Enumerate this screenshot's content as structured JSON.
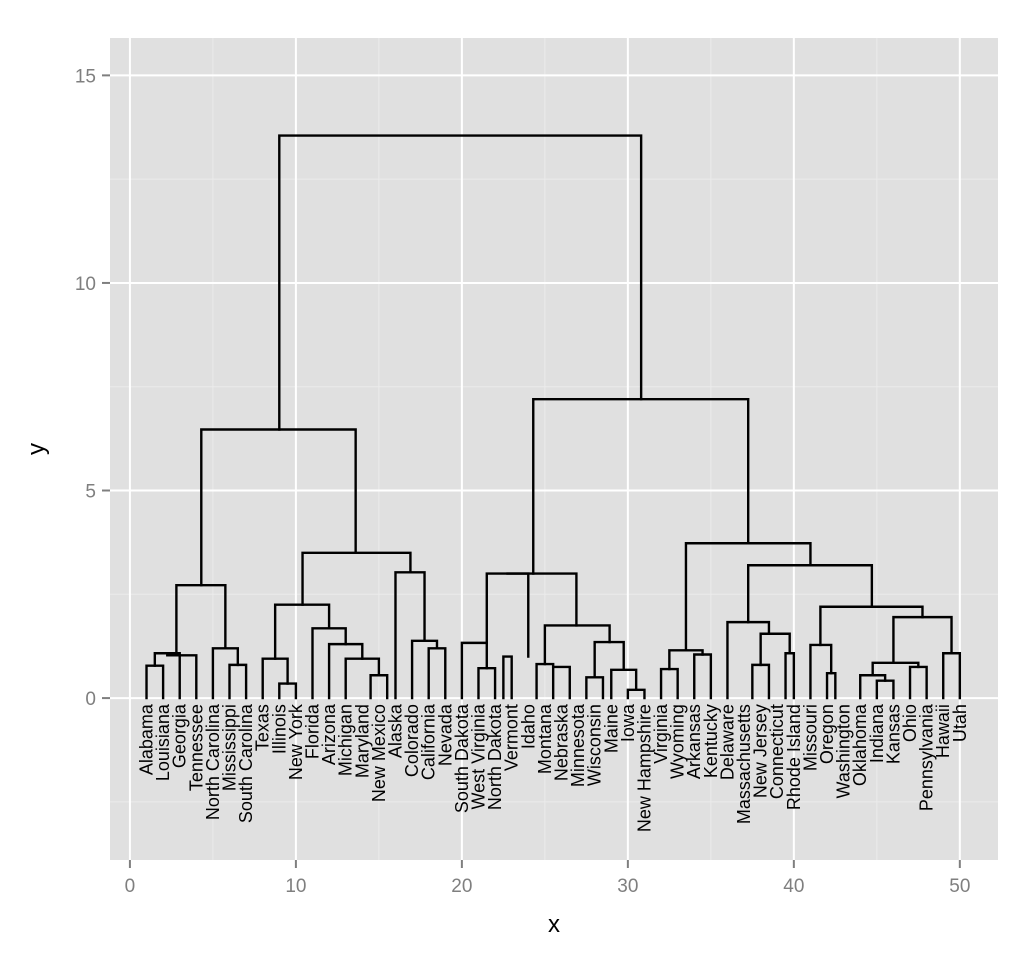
{
  "chart_data": {
    "type": "dendrogram",
    "xlabel": "x",
    "ylabel": "y",
    "xlim": [
      -1.2,
      52.3
    ],
    "ylim": [
      -3.9,
      15.9
    ],
    "x_ticks": [
      0,
      10,
      20,
      30,
      40,
      50
    ],
    "y_ticks": [
      0,
      5,
      10,
      15
    ],
    "grid": true,
    "leaves": [
      {
        "x": 1,
        "label": "Alabama"
      },
      {
        "x": 2,
        "label": "Louisiana"
      },
      {
        "x": 3,
        "label": "Georgia"
      },
      {
        "x": 4,
        "label": "Tennessee"
      },
      {
        "x": 5,
        "label": "North Carolina"
      },
      {
        "x": 6,
        "label": "Mississippi"
      },
      {
        "x": 7,
        "label": "South Carolina"
      },
      {
        "x": 8,
        "label": "Texas"
      },
      {
        "x": 9,
        "label": "Illinois"
      },
      {
        "x": 10,
        "label": "New York"
      },
      {
        "x": 11,
        "label": "Florida"
      },
      {
        "x": 12,
        "label": "Arizona"
      },
      {
        "x": 13,
        "label": "Michigan"
      },
      {
        "x": 14,
        "label": "Maryland"
      },
      {
        "x": 15,
        "label": "New Mexico"
      },
      {
        "x": 16,
        "label": "Alaska"
      },
      {
        "x": 17,
        "label": "Colorado"
      },
      {
        "x": 18,
        "label": "California"
      },
      {
        "x": 19,
        "label": "Nevada"
      },
      {
        "x": 20,
        "label": "South Dakota"
      },
      {
        "x": 21,
        "label": "West Virginia"
      },
      {
        "x": 22,
        "label": "North Dakota"
      },
      {
        "x": 23,
        "label": "Vermont"
      },
      {
        "x": 24,
        "label": "Idaho"
      },
      {
        "x": 25,
        "label": "Montana"
      },
      {
        "x": 26,
        "label": "Nebraska"
      },
      {
        "x": 27,
        "label": "Minnesota"
      },
      {
        "x": 28,
        "label": "Wisconsin"
      },
      {
        "x": 29,
        "label": "Maine"
      },
      {
        "x": 30,
        "label": "Iowa"
      },
      {
        "x": 31,
        "label": "New Hampshire"
      },
      {
        "x": 32,
        "label": "Virginia"
      },
      {
        "x": 33,
        "label": "Wyoming"
      },
      {
        "x": 34,
        "label": "Arkansas"
      },
      {
        "x": 35,
        "label": "Kentucky"
      },
      {
        "x": 36,
        "label": "Delaware"
      },
      {
        "x": 37,
        "label": "Massachusetts"
      },
      {
        "x": 38,
        "label": "New Jersey"
      },
      {
        "x": 39,
        "label": "Connecticut"
      },
      {
        "x": 40,
        "label": "Rhode Island"
      },
      {
        "x": 41,
        "label": "Missouri"
      },
      {
        "x": 42,
        "label": "Oregon"
      },
      {
        "x": 43,
        "label": "Washington"
      },
      {
        "x": 44,
        "label": "Oklahoma"
      },
      {
        "x": 45,
        "label": "Indiana"
      },
      {
        "x": 46,
        "label": "Kansas"
      },
      {
        "x": 47,
        "label": "Ohio"
      },
      {
        "x": 48,
        "label": "Pennsylvania"
      },
      {
        "x": 49,
        "label": "Hawaii"
      },
      {
        "x": 50,
        "label": "Utah"
      }
    ],
    "merges": [
      {
        "x1": 1,
        "y1": 0,
        "x2": 2,
        "y2": 0,
        "h": 0.78
      },
      {
        "x1": 1.5,
        "y1": 0.78,
        "x2": 3,
        "y2": 0,
        "h": 1.08
      },
      {
        "x1": 4,
        "y1": 0,
        "x2": 2.25,
        "y2": 1.08,
        "h": 1.03
      },
      {
        "x1": 5,
        "y1": 0,
        "x2": 6.5,
        "y2": 0.8,
        "h": 1.2
      },
      {
        "x1": 6,
        "y1": 0,
        "x2": 7,
        "y2": 0,
        "h": 0.8
      },
      {
        "x1": 2.8,
        "y1": 1.08,
        "x2": 5.75,
        "y2": 1.2,
        "h": 2.72
      },
      {
        "x1": 8,
        "y1": 0,
        "x2": 9.5,
        "y2": 0.35,
        "h": 0.95
      },
      {
        "x1": 9,
        "y1": 0,
        "x2": 10,
        "y2": 0,
        "h": 0.35
      },
      {
        "x1": 8.75,
        "y1": 0.95,
        "x2": 12,
        "y2": 1.68,
        "h": 2.25
      },
      {
        "x1": 11,
        "y1": 0,
        "x2": 13,
        "y2": 1.3,
        "h": 1.68
      },
      {
        "x1": 12,
        "y1": 0,
        "x2": 14,
        "y2": 0.95,
        "h": 1.3
      },
      {
        "x1": 13,
        "y1": 0,
        "x2": 15,
        "y2": 0.55,
        "h": 0.95
      },
      {
        "x1": 14.5,
        "y1": 0,
        "x2": 15.5,
        "y2": 0,
        "h": 0.55
      },
      {
        "x1": 16,
        "y1": 0,
        "x2": 17.75,
        "y2": 1.38,
        "h": 3.03
      },
      {
        "x1": 17,
        "y1": 0,
        "x2": 18.5,
        "y2": 1.2,
        "h": 1.38
      },
      {
        "x1": 18,
        "y1": 0,
        "x2": 19,
        "y2": 0,
        "h": 1.2
      },
      {
        "x1": 10.4,
        "y1": 2.25,
        "x2": 16.9,
        "y2": 3.03,
        "h": 3.5
      },
      {
        "x1": 4.3,
        "y1": 2.72,
        "x2": 13.6,
        "y2": 3.5,
        "h": 6.47
      },
      {
        "x1": 20,
        "y1": 0,
        "x2": 21.5,
        "y2": 0.72,
        "h": 1.33
      },
      {
        "x1": 21,
        "y1": 0,
        "x2": 22,
        "y2": 0,
        "h": 0.72
      },
      {
        "x1": 22.5,
        "y1": 0,
        "x2": 23,
        "y2": 0,
        "h": 1.0
      },
      {
        "x1": 21.5,
        "y1": 1.33,
        "x2": 24,
        "y2": 1.0,
        "h": 3.0
      },
      {
        "x1": 24.5,
        "y1": 0,
        "x2": 25.5,
        "y2": 0.75,
        "h": 0.82
      },
      {
        "x1": 25.5,
        "y1": 0,
        "x2": 26.5,
        "y2": 0,
        "h": 0.75
      },
      {
        "x1": 27.5,
        "y1": 0,
        "x2": 28.5,
        "y2": 0,
        "h": 0.5
      },
      {
        "x1": 29,
        "y1": 0,
        "x2": 30.5,
        "y2": 0.2,
        "h": 0.68
      },
      {
        "x1": 30,
        "y1": 0,
        "x2": 31,
        "y2": 0,
        "h": 0.2
      },
      {
        "x1": 28,
        "y1": 0.5,
        "x2": 29.75,
        "y2": 0.68,
        "h": 1.35
      },
      {
        "x1": 25,
        "y1": 0.82,
        "x2": 28.9,
        "y2": 1.35,
        "h": 1.75
      },
      {
        "x1": 22.75,
        "y1": 3.0,
        "x2": 26.9,
        "y2": 1.75,
        "h": 3.0
      },
      {
        "x1": 32,
        "y1": 0,
        "x2": 33,
        "y2": 0,
        "h": 0.7
      },
      {
        "x1": 32.5,
        "y1": 0.7,
        "x2": 34.5,
        "y2": 1.05,
        "h": 1.15
      },
      {
        "x1": 34,
        "y1": 0,
        "x2": 35,
        "y2": 0,
        "h": 1.05
      },
      {
        "x1": 36,
        "y1": 0,
        "x2": 38.5,
        "y2": 1.55,
        "h": 1.83
      },
      {
        "x1": 37.5,
        "y1": 0,
        "x2": 38.5,
        "y2": 0,
        "h": 0.8
      },
      {
        "x1": 38,
        "y1": 0.8,
        "x2": 39.75,
        "y2": 1.08,
        "h": 1.55
      },
      {
        "x1": 39.5,
        "y1": 0,
        "x2": 40,
        "y2": 0,
        "h": 1.08
      },
      {
        "x1": 41,
        "y1": 0,
        "x2": 42.25,
        "y2": 0.6,
        "h": 1.28
      },
      {
        "x1": 42,
        "y1": 0,
        "x2": 42.5,
        "y2": 0,
        "h": 0.6
      },
      {
        "x1": 44,
        "y1": 0,
        "x2": 45.5,
        "y2": 0.42,
        "h": 0.55
      },
      {
        "x1": 45,
        "y1": 0,
        "x2": 46,
        "y2": 0,
        "h": 0.42
      },
      {
        "x1": 44.75,
        "y1": 0.55,
        "x2": 47.5,
        "y2": 0.75,
        "h": 0.85
      },
      {
        "x1": 47,
        "y1": 0,
        "x2": 48,
        "y2": 0,
        "h": 0.75
      },
      {
        "x1": 46,
        "y1": 0.85,
        "x2": 49.5,
        "y2": 1.08,
        "h": 1.95
      },
      {
        "x1": 49,
        "y1": 0,
        "x2": 50,
        "y2": 0,
        "h": 1.08
      },
      {
        "x1": 41.6,
        "y1": 1.28,
        "x2": 47.75,
        "y2": 1.95,
        "h": 2.2
      },
      {
        "x1": 37.25,
        "y1": 1.83,
        "x2": 44.7,
        "y2": 2.2,
        "h": 3.2
      },
      {
        "x1": 33.5,
        "y1": 1.15,
        "x2": 41,
        "y2": 3.2,
        "h": 3.73
      },
      {
        "x1": 24.3,
        "y1": 3.0,
        "x2": 37.25,
        "y2": 3.73,
        "h": 7.2
      },
      {
        "x1": 9,
        "y1": 6.47,
        "x2": 30.8,
        "y2": 7.2,
        "h": 13.55
      }
    ]
  }
}
